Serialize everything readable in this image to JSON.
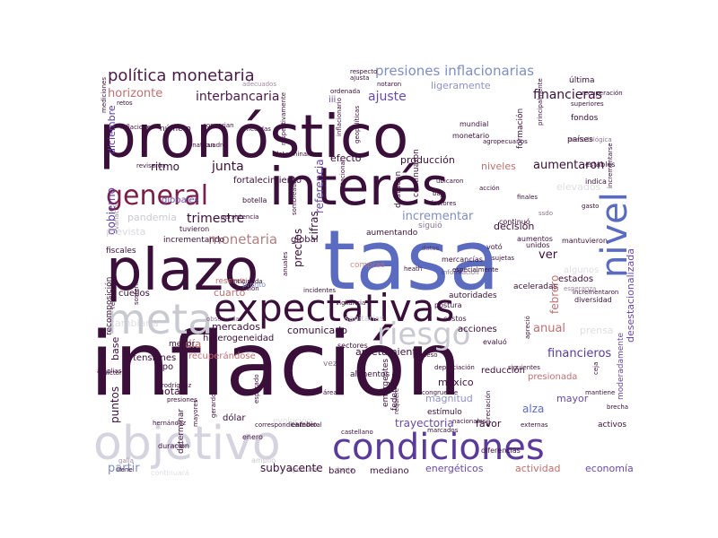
{
  "colors": {
    "background": "#ffffff",
    "dark": "#3a0f3a",
    "plum": "#5a1a4a",
    "blue": "#5b6cc0",
    "violet": "#6a4aa6",
    "grey": "#c9c9d2",
    "rose": "#c07070",
    "lilac": "#9090c8"
  },
  "words": [
    {
      "t": "pronóstico",
      "c": "#3a0f3a"
    },
    {
      "t": "tasa",
      "c": "#5b6cc0"
    },
    {
      "t": "inflación",
      "c": "#3a0f3a"
    },
    {
      "t": "plazo",
      "c": "#3a0f3a"
    },
    {
      "t": "interés",
      "c": "#3a0f3a"
    },
    {
      "t": "general",
      "c": "#7a1f4a"
    },
    {
      "t": "expectativas",
      "c": "#3a0f3a"
    },
    {
      "t": "meta",
      "c": "#c9c9d2"
    },
    {
      "t": "objetivo",
      "c": "#d5d3de"
    },
    {
      "t": "condiciones",
      "c": "#5a3a9a"
    },
    {
      "t": "nivel",
      "c": "#5b6cc0"
    },
    {
      "t": "riesgo",
      "c": "#c9c9d2"
    },
    {
      "t": "política monetaria",
      "c": "#4a1a4a"
    },
    {
      "t": "presiones inflacionarias",
      "c": "#7f8ec2"
    },
    {
      "t": "horizonte",
      "c": "#c07070"
    },
    {
      "t": "interbancaria",
      "c": "#4a1a4a"
    },
    {
      "t": "ajuste",
      "c": "#6a4aa6"
    },
    {
      "t": "financieras",
      "c": "#3a0f3a"
    },
    {
      "t": "ligeramente",
      "c": "#9090c8"
    },
    {
      "t": "monetaria",
      "c": "#b08080"
    },
    {
      "t": "trimestre",
      "c": "#3a0f3a"
    },
    {
      "t": "junta",
      "c": "#3a0f3a"
    },
    {
      "t": "ritmo",
      "c": "#3a0f3a"
    },
    {
      "t": "gobierno",
      "c": "#5a3a9a"
    },
    {
      "t": "incrementar",
      "c": "#7f8ec2"
    },
    {
      "t": "precios",
      "c": "#3a0f3a"
    },
    {
      "t": "cifras",
      "c": "#3a0f3a"
    },
    {
      "t": "referencia",
      "c": "#6a4aa6"
    },
    {
      "t": "aumentaron",
      "c": "#3a0f3a"
    },
    {
      "t": "niveles",
      "c": "#c07070"
    },
    {
      "t": "producción",
      "c": "#3a0f3a"
    },
    {
      "t": "efecto",
      "c": "#3a0f3a"
    },
    {
      "t": "decisión",
      "c": "#3a0f3a"
    },
    {
      "t": "ver",
      "c": "#3a0f3a"
    },
    {
      "t": "anual",
      "c": "#c07070"
    },
    {
      "t": "febrero",
      "c": "#c07070"
    },
    {
      "t": "financieros",
      "c": "#5a3a9a"
    },
    {
      "t": "desestacionalizada",
      "c": "#6a4aa6"
    },
    {
      "t": "alza",
      "c": "#5b6cc0"
    },
    {
      "t": "mayor",
      "c": "#6a4aa6"
    },
    {
      "t": "trayectoria",
      "c": "#6a4aa6"
    },
    {
      "t": "favor",
      "c": "#3a0f3a"
    },
    {
      "t": "méxico",
      "c": "#3a0f3a"
    },
    {
      "t": "magnitud",
      "c": "#9090c8"
    },
    {
      "t": "apretamiento",
      "c": "#3a0f3a"
    },
    {
      "t": "comunicado",
      "c": "#3a0f3a"
    },
    {
      "t": "subyacente",
      "c": "#3a0f3a"
    },
    {
      "t": "partir",
      "c": "#7f8ec2"
    },
    {
      "t": "banco",
      "c": "#3a0f3a"
    },
    {
      "t": "mediano",
      "c": "#3a0f3a"
    },
    {
      "t": "energéticos",
      "c": "#6a4aa6"
    },
    {
      "t": "actividad",
      "c": "#c07070"
    },
    {
      "t": "economía",
      "c": "#6a4aa6"
    },
    {
      "t": "puntos",
      "c": "#3a0f3a"
    },
    {
      "t": "base",
      "c": "#3a0f3a"
    },
    {
      "t": "día",
      "c": "#c07070"
    },
    {
      "t": "nota",
      "c": "#3a0f3a"
    },
    {
      "t": "cuarto",
      "c": "#c07070"
    },
    {
      "t": "mercados",
      "c": "#3a0f3a"
    },
    {
      "t": "global",
      "c": "#3a0f3a"
    },
    {
      "t": "globales",
      "c": "#6a4aa6"
    },
    {
      "t": "pandemia",
      "c": "#c9c9d2"
    },
    {
      "t": "prevista",
      "c": "#c9c9d2"
    },
    {
      "t": "diciembre",
      "c": "#5a3a9a"
    },
    {
      "t": "número",
      "c": "#3a0f3a"
    },
    {
      "t": "fortalecimiento",
      "c": "#3a0f3a"
    },
    {
      "t": "cambiaria",
      "c": "#c9c9d2"
    },
    {
      "t": "heterogeneidad",
      "c": "#3a0f3a"
    },
    {
      "t": "tensiones",
      "c": "#3a0f3a"
    },
    {
      "t": "recuperándose",
      "c": "#c07070"
    },
    {
      "t": "reducción",
      "c": "#3a0f3a"
    },
    {
      "t": "acciones",
      "c": "#3a0f3a"
    },
    {
      "t": "alimentos",
      "c": "#3a0f3a"
    },
    {
      "t": "estímulo",
      "c": "#3a0f3a"
    },
    {
      "t": "emergentes",
      "c": "#3a0f3a"
    },
    {
      "t": "federales",
      "c": "#3a0f3a"
    },
    {
      "t": "aceleradas",
      "c": "#3a0f3a"
    },
    {
      "t": "estados",
      "c": "#3a0f3a"
    },
    {
      "t": "autoridades",
      "c": "#3a0f3a"
    },
    {
      "t": "compras",
      "c": "#c07070"
    },
    {
      "t": "reserva",
      "c": "#c07070"
    },
    {
      "t": "cuellos",
      "c": "#3a0f3a"
    },
    {
      "t": "fiscales",
      "c": "#3a0f3a"
    },
    {
      "t": "recomposición",
      "c": "#3a0f3a"
    },
    {
      "t": "aumentando",
      "c": "#3a0f3a"
    },
    {
      "t": "prensa",
      "c": "#c9c9d2"
    },
    {
      "t": "elevados",
      "c": "#c9c9d2"
    },
    {
      "t": "continuaron",
      "c": "#3a0f3a"
    },
    {
      "t": "destacan",
      "c": "#3a0f3a"
    },
    {
      "t": "fondos",
      "c": "#3a0f3a"
    },
    {
      "t": "países",
      "c": "#3a0f3a"
    },
    {
      "t": "mundial",
      "c": "#3a0f3a"
    },
    {
      "t": "monetario",
      "c": "#3a0f3a"
    },
    {
      "t": "última",
      "c": "#3a0f3a"
    },
    {
      "t": "iii",
      "c": "#6a4aa6"
    },
    {
      "t": "mantuvieron",
      "c": "#3a0f3a"
    },
    {
      "t": "algunos",
      "c": "#c9c9d2"
    },
    {
      "t": "dólar",
      "c": "#3a0f3a"
    },
    {
      "t": "enero",
      "c": "#3a0f3a"
    },
    {
      "t": "menor",
      "c": "#3a0f3a"
    },
    {
      "t": "tipo",
      "c": "#3a0f3a"
    },
    {
      "t": "duración",
      "c": "#3a0f3a"
    },
    {
      "t": "continuará",
      "c": "#c9c9d2"
    },
    {
      "t": "moderadamente",
      "c": "#6a4aa6"
    },
    {
      "t": "activos",
      "c": "#3a0f3a"
    },
    {
      "t": "presionada",
      "c": "#c07070"
    },
    {
      "t": "mercancías",
      "c": "#3a0f3a"
    },
    {
      "t": "siguió",
      "c": "#3a0f3a"
    },
    {
      "t": "evolución",
      "c": "#c9c9d2"
    },
    {
      "t": "sanitarias",
      "c": "#c9c9d2"
    },
    {
      "t": "vez",
      "c": "#3a0f3a"
    },
    {
      "t": "amplio",
      "c": "#c9c9d2"
    },
    {
      "t": "irene",
      "c": "#3a0f3a"
    },
    {
      "t": "diferencias",
      "c": "#3a0f3a"
    },
    {
      "t": "evaluó",
      "c": "#3a0f3a"
    },
    {
      "t": "diversidad",
      "c": "#3a0f3a"
    },
    {
      "t": "postura",
      "c": "#3a0f3a"
    },
    {
      "t": "costos",
      "c": "#3a0f3a"
    },
    {
      "t": "sectores",
      "c": "#3a0f3a"
    },
    {
      "t": "cambio",
      "c": "#3a0f3a"
    },
    {
      "t": "determinar",
      "c": "#3a0f3a"
    },
    {
      "t": "incrementando",
      "c": "#3a0f3a"
    },
    {
      "t": "pronto",
      "c": "#7f8ec2"
    },
    {
      "t": "botella",
      "c": "#3a0f3a"
    },
    {
      "t": "tuvieron",
      "c": "#3a0f3a"
    },
    {
      "t": "estables",
      "c": "#3a0f3a"
    },
    {
      "t": "indica",
      "c": "#3a0f3a"
    },
    {
      "t": "gasto",
      "c": "#3a0f3a"
    },
    {
      "t": "aumentos",
      "c": "#3a0f3a"
    },
    {
      "t": "continuó",
      "c": "#3a0f3a"
    },
    {
      "t": "votó",
      "c": "#3a0f3a"
    },
    {
      "t": "unidos",
      "c": "#3a0f3a"
    },
    {
      "t": "formación",
      "c": "#3a0f3a"
    },
    {
      "t": "recuperación",
      "c": "#3a0f3a"
    },
    {
      "t": "superiores",
      "c": "#3a0f3a"
    },
    {
      "t": "principalmente",
      "c": "#3a0f3a"
    },
    {
      "t": "agropecuarios",
      "c": "#3a0f3a"
    },
    {
      "t": "ubicaron",
      "c": "#3a0f3a"
    },
    {
      "t": "baja",
      "c": "#3a0f3a"
    },
    {
      "t": "acción",
      "c": "#3a0f3a"
    },
    {
      "t": "finales",
      "c": "#3a0f3a"
    },
    {
      "t": "persistencia",
      "c": "#3a0f3a"
    },
    {
      "t": "respecto",
      "c": "#3a0f3a"
    },
    {
      "t": "ajusta",
      "c": "#3a0f3a"
    },
    {
      "t": "notaron",
      "c": "#3a0f3a"
    },
    {
      "t": "ordenada",
      "c": "#3a0f3a"
    },
    {
      "t": "converjan",
      "c": "#3a0f3a"
    },
    {
      "t": "medidas",
      "c": "#3a0f3a"
    },
    {
      "t": "retos",
      "c": "#3a0f3a"
    },
    {
      "t": "inflaciones",
      "c": "#3a0f3a"
    },
    {
      "t": "revisaron",
      "c": "#3a0f3a"
    },
    {
      "t": "determinantes",
      "c": "#3a0f3a"
    },
    {
      "t": "cuadro",
      "c": "#3a0f3a"
    },
    {
      "t": "anuales",
      "c": "#3a0f3a"
    },
    {
      "t": "geopolíticas",
      "c": "#3a0f3a"
    },
    {
      "t": "estacional",
      "c": "#3a0f3a"
    },
    {
      "t": "especialmente",
      "c": "#3a0f3a"
    },
    {
      "t": "heath",
      "c": "#3a0f3a"
    },
    {
      "t": "sujetas",
      "c": "#3a0f3a"
    },
    {
      "t": "información",
      "c": "#3a0f3a"
    },
    {
      "t": "datos",
      "c": "#3a0f3a"
    },
    {
      "t": "factores",
      "c": "#3a0f3a"
    },
    {
      "t": "ssdo",
      "c": "#3a0f3a"
    },
    {
      "t": "apreció",
      "c": "#3a0f3a"
    },
    {
      "t": "incrementaron",
      "c": "#3a0f3a"
    },
    {
      "t": "reducido",
      "c": "#3a0f3a"
    },
    {
      "t": "amplias",
      "c": "#3a0f3a"
    },
    {
      "t": "observada",
      "c": "#3a0f3a"
    },
    {
      "t": "ocasión",
      "c": "#3a0f3a"
    },
    {
      "t": "anticipada",
      "c": "#3a0f3a"
    },
    {
      "t": "incidentes",
      "c": "#3a0f3a"
    },
    {
      "t": "áreas",
      "c": "#3a0f3a"
    },
    {
      "t": "mantenido",
      "c": "#3a0f3a"
    },
    {
      "t": "esperado",
      "c": "#3a0f3a"
    },
    {
      "t": "presiones",
      "c": "#3a0f3a"
    },
    {
      "t": "hernández",
      "c": "#3a0f3a"
    },
    {
      "t": "rodríguez",
      "c": "#3a0f3a"
    },
    {
      "t": "victoria",
      "c": "#3a0f3a"
    },
    {
      "t": "mayores",
      "c": "#3a0f3a"
    },
    {
      "t": "gerardo",
      "c": "#3a0f3a"
    },
    {
      "t": "congruente",
      "c": "#3a0f3a"
    },
    {
      "t": "siguientes",
      "c": "#3a0f3a"
    },
    {
      "t": "mantiene",
      "c": "#3a0f3a"
    },
    {
      "t": "brecha",
      "c": "#3a0f3a"
    },
    {
      "t": "ceja",
      "c": "#3a0f3a"
    },
    {
      "t": "externas",
      "c": "#3a0f3a"
    },
    {
      "t": "nacionales",
      "c": "#3a0f3a"
    },
    {
      "t": "apreciación",
      "c": "#3a0f3a"
    },
    {
      "t": "marcados",
      "c": "#3a0f3a"
    },
    {
      "t": "castellano",
      "c": "#3a0f3a"
    },
    {
      "t": "correspondiente",
      "c": "#3a0f3a"
    },
    {
      "t": "federal",
      "c": "#3a0f3a"
    },
    {
      "t": "requiere",
      "c": "#3a0f3a"
    },
    {
      "t": "proceso",
      "c": "#3a0f3a"
    },
    {
      "t": "galia",
      "c": "#3a0f3a"
    },
    {
      "t": "borja",
      "c": "#3a0f3a"
    },
    {
      "t": "oportuna",
      "c": "#3a0f3a"
    },
    {
      "t": "variación",
      "c": "#3a0f3a"
    },
    {
      "t": "sostenido",
      "c": "#3a0f3a"
    },
    {
      "t": "incrementarse",
      "c": "#3a0f3a"
    },
    {
      "t": "mediciones",
      "c": "#3a0f3a"
    },
    {
      "t": "sombreada",
      "c": "#3a0f3a"
    },
    {
      "t": "jonathan",
      "c": "#3a0f3a"
    },
    {
      "t": "respectivamente",
      "c": "#3a0f3a"
    },
    {
      "t": "metodológica",
      "c": "#3a0f3a"
    },
    {
      "t": "adecuados",
      "c": "#3a0f3a"
    },
    {
      "t": "depreciación",
      "c": "#3a0f3a"
    },
    {
      "t": "vigilancia",
      "c": "#3a0f3a"
    },
    {
      "t": "inflacionario",
      "c": "#3a0f3a"
    },
    {
      "t": "esperanza",
      "c": "#3a0f3a"
    },
    {
      "t": "iv",
      "c": "#3a0f3a"
    },
    {
      "t": "corto",
      "c": "#3a0f3a"
    },
    {
      "t": "producto",
      "c": "#3a0f3a"
    },
    {
      "t": "externos",
      "c": "#3a0f3a"
    }
  ]
}
